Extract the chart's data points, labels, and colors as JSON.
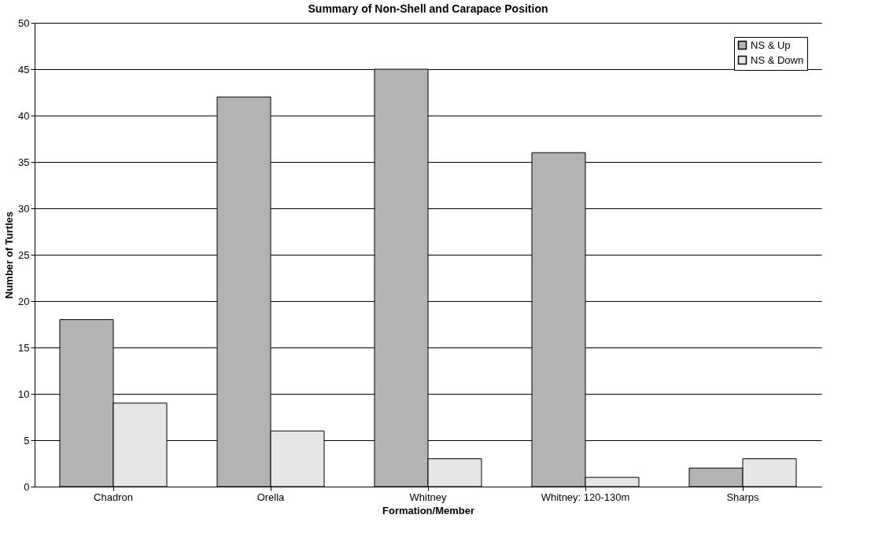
{
  "chart_data": {
    "type": "bar",
    "title": "Summary of Non-Shell and Carapace Position",
    "xlabel": "Formation/Member",
    "ylabel": "Number of Turtles",
    "categories": [
      "Chadron",
      "Orella",
      "Whitney",
      "Whitney: 120-130m",
      "Sharps"
    ],
    "series": [
      {
        "name": "NS & Up",
        "color": "#b3b3b3",
        "values": [
          18,
          42,
          45,
          36,
          2
        ]
      },
      {
        "name": "NS & Down",
        "color": "#e6e6e6",
        "values": [
          9,
          6,
          3,
          1,
          3
        ]
      }
    ],
    "ylim": [
      0,
      50
    ],
    "yticks": [
      0,
      5,
      10,
      15,
      20,
      25,
      30,
      35,
      40,
      45,
      50
    ],
    "grid": "y",
    "legend": "top right"
  }
}
